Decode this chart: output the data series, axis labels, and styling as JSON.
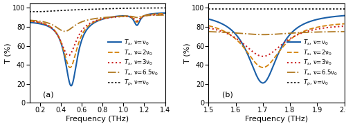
{
  "panel_a": {
    "label": "(a)",
    "xlim": [
      0.1,
      1.4
    ],
    "xticks": [
      0.2,
      0.4,
      0.6,
      0.8,
      1.0,
      1.2,
      1.4
    ],
    "ylim": [
      0,
      105
    ],
    "yticks": [
      0,
      20,
      40,
      60,
      80,
      100
    ],
    "xlabel": "Frequency (THz)",
    "ylabel": "T (%)"
  },
  "panel_b": {
    "label": "(b)",
    "xlim": [
      1.5,
      2.0
    ],
    "xticks": [
      1.5,
      1.6,
      1.7,
      1.8,
      1.9,
      2.0
    ],
    "ylim": [
      0,
      105
    ],
    "yticks": [
      0,
      20,
      40,
      60,
      80,
      100
    ],
    "xlabel": "Frequency (THz)",
    "ylabel": "T (%)"
  },
  "line_styles": {
    "Ts_v0": {
      "color": "#1a5fa8",
      "ls": "-",
      "lw": 1.5,
      "label": "$T_s$, ν=ν$_0$"
    },
    "Ts_2v0": {
      "color": "#d4820a",
      "ls": "--",
      "lw": 1.3,
      "label": "$T_s$, ν=2ν$_0$"
    },
    "Ts_3v0": {
      "color": "#cc2222",
      "ls": ":",
      "lw": 1.5,
      "label": "$T_s$, ν=3ν$_0$"
    },
    "Ts_65v0": {
      "color": "#b07820",
      "ls": "-.",
      "lw": 1.3,
      "label": "$T_s$, ν=6.5ν$_0$"
    },
    "Tp_v0": {
      "color": "#111111",
      "ls": ":",
      "lw": 1.2,
      "label": "$T_p$, ν=ν$_0$"
    }
  },
  "legend_fontsize": 6.2,
  "tick_fontsize": 7,
  "label_fontsize": 8
}
